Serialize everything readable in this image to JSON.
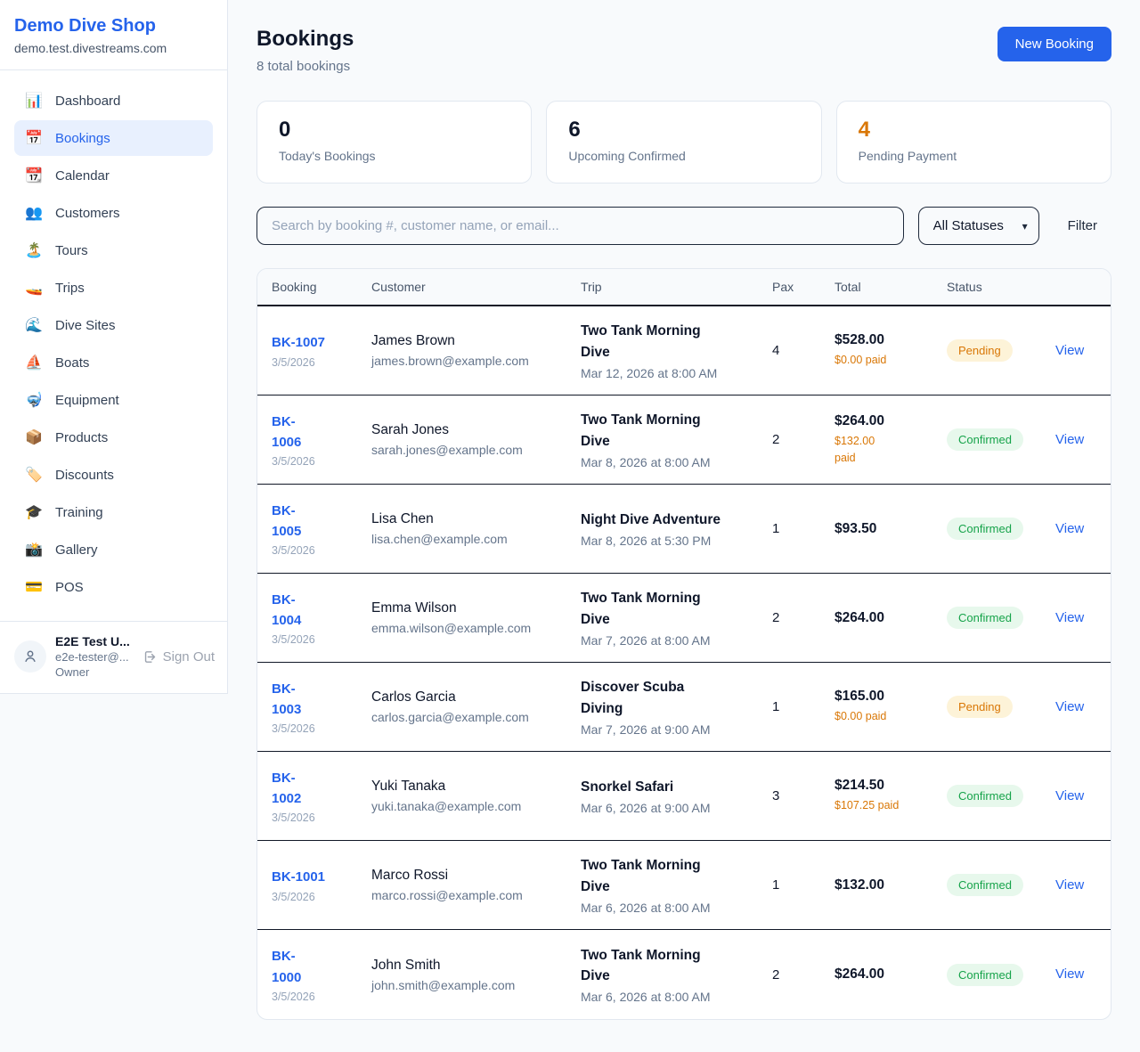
{
  "sidebar": {
    "brand": {
      "name": "Demo Dive Shop",
      "domain": "demo.test.divestreams.com"
    },
    "items": [
      {
        "icon": "📊",
        "icon_name": "bar-chart-icon",
        "label": "Dashboard",
        "active": false
      },
      {
        "icon": "📅",
        "icon_name": "calendar-icon",
        "label": "Bookings",
        "active": true
      },
      {
        "icon": "📆",
        "icon_name": "tear-off-calendar-icon",
        "label": "Calendar",
        "active": false
      },
      {
        "icon": "👥",
        "icon_name": "people-icon",
        "label": "Customers",
        "active": false
      },
      {
        "icon": "🏝️",
        "icon_name": "island-icon",
        "label": "Tours",
        "active": false
      },
      {
        "icon": "🚤",
        "icon_name": "speedboat-icon",
        "label": "Trips",
        "active": false
      },
      {
        "icon": "🌊",
        "icon_name": "wave-icon",
        "label": "Dive Sites",
        "active": false
      },
      {
        "icon": "⛵",
        "icon_name": "sailboat-icon",
        "label": "Boats",
        "active": false
      },
      {
        "icon": "🤿",
        "icon_name": "diving-mask-icon",
        "label": "Equipment",
        "active": false
      },
      {
        "icon": "📦",
        "icon_name": "package-icon",
        "label": "Products",
        "active": false
      },
      {
        "icon": "🏷️",
        "icon_name": "tag-icon",
        "label": "Discounts",
        "active": false
      },
      {
        "icon": "🎓",
        "icon_name": "graduation-cap-icon",
        "label": "Training",
        "active": false
      },
      {
        "icon": "📸",
        "icon_name": "camera-icon",
        "label": "Gallery",
        "active": false
      },
      {
        "icon": "💳",
        "icon_name": "credit-card-icon",
        "label": "POS",
        "active": false
      }
    ],
    "user": {
      "name": "E2E Test U...",
      "email": "e2e-tester@...",
      "role": "Owner",
      "signout_label": "Sign Out"
    }
  },
  "header": {
    "title": "Bookings",
    "subtitle": "8 total bookings",
    "new_booking_label": "New Booking"
  },
  "stats": [
    {
      "value": "0",
      "label": "Today's Bookings",
      "accent": false
    },
    {
      "value": "6",
      "label": "Upcoming Confirmed",
      "accent": false
    },
    {
      "value": "4",
      "label": "Pending Payment",
      "accent": true
    }
  ],
  "controls": {
    "search_placeholder": "Search by booking #, customer name, or email...",
    "status_select_value": "All Statuses",
    "filter_label": "Filter"
  },
  "table": {
    "columns": [
      "Booking",
      "Customer",
      "Trip",
      "Pax",
      "Total",
      "Status",
      ""
    ],
    "rows": [
      {
        "id_lines": [
          "BK-1007"
        ],
        "date": "3/5/2026",
        "customer": "James Brown",
        "email": "james.brown@example.com",
        "trip_lines": [
          "Two Tank Morning",
          "Dive"
        ],
        "when": "Mar 12, 2026 at 8:00 AM",
        "pax": "4",
        "total": "$528.00",
        "paid_lines": [
          "$0.00 paid"
        ],
        "status": "Pending",
        "view_label": "View"
      },
      {
        "id_lines": [
          "BK-",
          "1006"
        ],
        "date": "3/5/2026",
        "customer": "Sarah Jones",
        "email": "sarah.jones@example.com",
        "trip_lines": [
          "Two Tank Morning",
          "Dive"
        ],
        "when": "Mar 8, 2026 at 8:00 AM",
        "pax": "2",
        "total": "$264.00",
        "paid_lines": [
          "$132.00",
          "paid"
        ],
        "status": "Confirmed",
        "view_label": "View"
      },
      {
        "id_lines": [
          "BK-",
          "1005"
        ],
        "date": "3/5/2026",
        "customer": "Lisa Chen",
        "email": "lisa.chen@example.com",
        "trip_lines": [
          "Night Dive Adventure"
        ],
        "when": "Mar 8, 2026 at 5:30 PM",
        "pax": "1",
        "total": "$93.50",
        "paid_lines": [],
        "status": "Confirmed",
        "view_label": "View"
      },
      {
        "id_lines": [
          "BK-",
          "1004"
        ],
        "date": "3/5/2026",
        "customer": "Emma Wilson",
        "email": "emma.wilson@example.com",
        "trip_lines": [
          "Two Tank Morning",
          "Dive"
        ],
        "when": "Mar 7, 2026 at 8:00 AM",
        "pax": "2",
        "total": "$264.00",
        "paid_lines": [],
        "status": "Confirmed",
        "view_label": "View"
      },
      {
        "id_lines": [
          "BK-",
          "1003"
        ],
        "date": "3/5/2026",
        "customer": "Carlos Garcia",
        "email": "carlos.garcia@example.com",
        "trip_lines": [
          "Discover Scuba",
          "Diving"
        ],
        "when": "Mar 7, 2026 at 9:00 AM",
        "pax": "1",
        "total": "$165.00",
        "paid_lines": [
          "$0.00 paid"
        ],
        "status": "Pending",
        "view_label": "View"
      },
      {
        "id_lines": [
          "BK-",
          "1002"
        ],
        "date": "3/5/2026",
        "customer": "Yuki Tanaka",
        "email": "yuki.tanaka@example.com",
        "trip_lines": [
          "Snorkel Safari"
        ],
        "when": "Mar 6, 2026 at 9:00 AM",
        "pax": "3",
        "total": "$214.50",
        "paid_lines": [
          "$107.25 paid"
        ],
        "status": "Confirmed",
        "view_label": "View"
      },
      {
        "id_lines": [
          "BK-1001"
        ],
        "date": "3/5/2026",
        "customer": "Marco Rossi",
        "email": "marco.rossi@example.com",
        "trip_lines": [
          "Two Tank Morning",
          "Dive"
        ],
        "when": "Mar 6, 2026 at 8:00 AM",
        "pax": "1",
        "total": "$132.00",
        "paid_lines": [],
        "status": "Confirmed",
        "view_label": "View"
      },
      {
        "id_lines": [
          "BK-",
          "1000"
        ],
        "date": "3/5/2026",
        "customer": "John Smith",
        "email": "john.smith@example.com",
        "trip_lines": [
          "Two Tank Morning",
          "Dive"
        ],
        "when": "Mar 6, 2026 at 8:00 AM",
        "pax": "2",
        "total": "$264.00",
        "paid_lines": [],
        "status": "Confirmed",
        "view_label": "View"
      }
    ]
  },
  "colors": {
    "accent_blue": "#2563eb",
    "pending_orange": "#d97706",
    "confirmed_green": "#16a34a",
    "page_background": "#f8fafc",
    "pending_badge_bg": "#fdf3d8",
    "confirmed_badge_bg": "#e7f8ec"
  }
}
